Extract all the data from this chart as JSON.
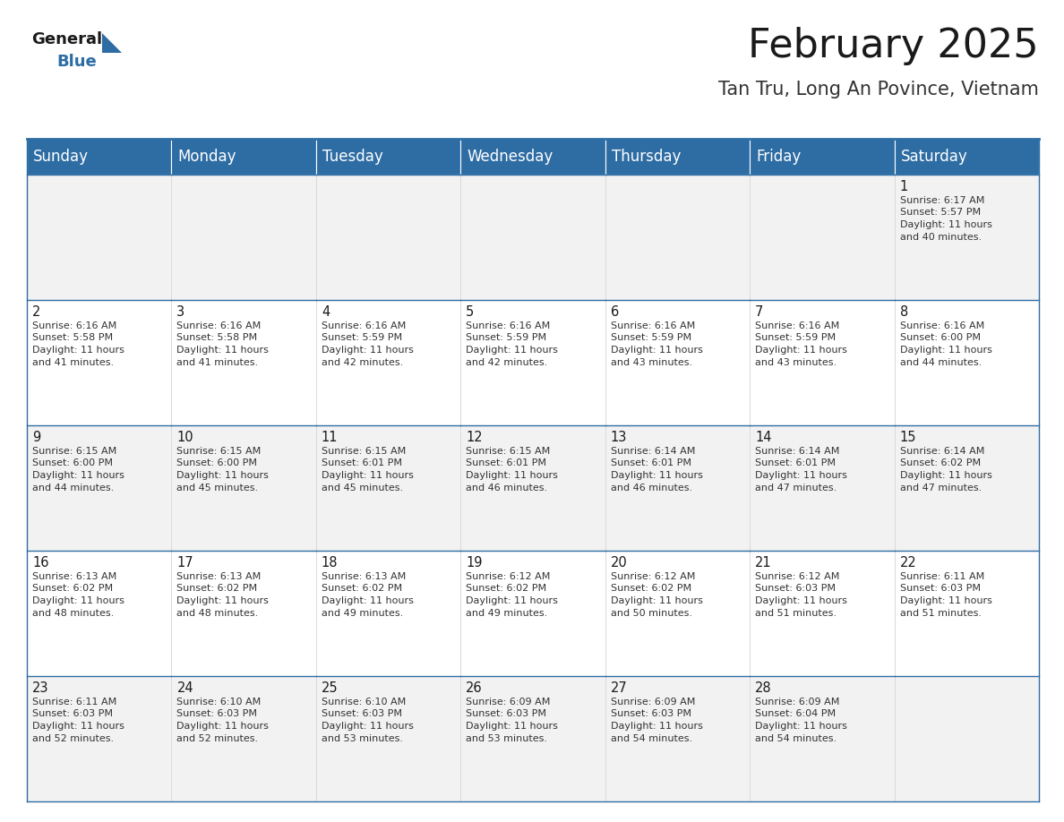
{
  "title": "February 2025",
  "subtitle": "Tan Tru, Long An Povince, Vietnam",
  "header_bg": "#2E6DA4",
  "header_text_color": "#FFFFFF",
  "cell_bg": "#F2F2F2",
  "cell_bg_empty": "#FFFFFF",
  "border_color": "#2E6DA4",
  "text_color": "#333333",
  "day_num_color": "#1a1a1a",
  "days_of_week": [
    "Sunday",
    "Monday",
    "Tuesday",
    "Wednesday",
    "Thursday",
    "Friday",
    "Saturday"
  ],
  "title_fontsize": 32,
  "subtitle_fontsize": 15,
  "header_fontsize": 12,
  "day_num_fontsize": 10.5,
  "cell_text_fontsize": 8.0,
  "logo_general_fontsize": 13,
  "logo_blue_fontsize": 13,
  "calendar": [
    [
      null,
      null,
      null,
      null,
      null,
      null,
      {
        "day": 1,
        "sunrise": "6:17 AM",
        "sunset": "5:57 PM",
        "daylight_line1": "Daylight: 11 hours",
        "daylight_line2": "and 40 minutes."
      }
    ],
    [
      {
        "day": 2,
        "sunrise": "6:16 AM",
        "sunset": "5:58 PM",
        "daylight_line1": "Daylight: 11 hours",
        "daylight_line2": "and 41 minutes."
      },
      {
        "day": 3,
        "sunrise": "6:16 AM",
        "sunset": "5:58 PM",
        "daylight_line1": "Daylight: 11 hours",
        "daylight_line2": "and 41 minutes."
      },
      {
        "day": 4,
        "sunrise": "6:16 AM",
        "sunset": "5:59 PM",
        "daylight_line1": "Daylight: 11 hours",
        "daylight_line2": "and 42 minutes."
      },
      {
        "day": 5,
        "sunrise": "6:16 AM",
        "sunset": "5:59 PM",
        "daylight_line1": "Daylight: 11 hours",
        "daylight_line2": "and 42 minutes."
      },
      {
        "day": 6,
        "sunrise": "6:16 AM",
        "sunset": "5:59 PM",
        "daylight_line1": "Daylight: 11 hours",
        "daylight_line2": "and 43 minutes."
      },
      {
        "day": 7,
        "sunrise": "6:16 AM",
        "sunset": "5:59 PM",
        "daylight_line1": "Daylight: 11 hours",
        "daylight_line2": "and 43 minutes."
      },
      {
        "day": 8,
        "sunrise": "6:16 AM",
        "sunset": "6:00 PM",
        "daylight_line1": "Daylight: 11 hours",
        "daylight_line2": "and 44 minutes."
      }
    ],
    [
      {
        "day": 9,
        "sunrise": "6:15 AM",
        "sunset": "6:00 PM",
        "daylight_line1": "Daylight: 11 hours",
        "daylight_line2": "and 44 minutes."
      },
      {
        "day": 10,
        "sunrise": "6:15 AM",
        "sunset": "6:00 PM",
        "daylight_line1": "Daylight: 11 hours",
        "daylight_line2": "and 45 minutes."
      },
      {
        "day": 11,
        "sunrise": "6:15 AM",
        "sunset": "6:01 PM",
        "daylight_line1": "Daylight: 11 hours",
        "daylight_line2": "and 45 minutes."
      },
      {
        "day": 12,
        "sunrise": "6:15 AM",
        "sunset": "6:01 PM",
        "daylight_line1": "Daylight: 11 hours",
        "daylight_line2": "and 46 minutes."
      },
      {
        "day": 13,
        "sunrise": "6:14 AM",
        "sunset": "6:01 PM",
        "daylight_line1": "Daylight: 11 hours",
        "daylight_line2": "and 46 minutes."
      },
      {
        "day": 14,
        "sunrise": "6:14 AM",
        "sunset": "6:01 PM",
        "daylight_line1": "Daylight: 11 hours",
        "daylight_line2": "and 47 minutes."
      },
      {
        "day": 15,
        "sunrise": "6:14 AM",
        "sunset": "6:02 PM",
        "daylight_line1": "Daylight: 11 hours",
        "daylight_line2": "and 47 minutes."
      }
    ],
    [
      {
        "day": 16,
        "sunrise": "6:13 AM",
        "sunset": "6:02 PM",
        "daylight_line1": "Daylight: 11 hours",
        "daylight_line2": "and 48 minutes."
      },
      {
        "day": 17,
        "sunrise": "6:13 AM",
        "sunset": "6:02 PM",
        "daylight_line1": "Daylight: 11 hours",
        "daylight_line2": "and 48 minutes."
      },
      {
        "day": 18,
        "sunrise": "6:13 AM",
        "sunset": "6:02 PM",
        "daylight_line1": "Daylight: 11 hours",
        "daylight_line2": "and 49 minutes."
      },
      {
        "day": 19,
        "sunrise": "6:12 AM",
        "sunset": "6:02 PM",
        "daylight_line1": "Daylight: 11 hours",
        "daylight_line2": "and 49 minutes."
      },
      {
        "day": 20,
        "sunrise": "6:12 AM",
        "sunset": "6:02 PM",
        "daylight_line1": "Daylight: 11 hours",
        "daylight_line2": "and 50 minutes."
      },
      {
        "day": 21,
        "sunrise": "6:12 AM",
        "sunset": "6:03 PM",
        "daylight_line1": "Daylight: 11 hours",
        "daylight_line2": "and 51 minutes."
      },
      {
        "day": 22,
        "sunrise": "6:11 AM",
        "sunset": "6:03 PM",
        "daylight_line1": "Daylight: 11 hours",
        "daylight_line2": "and 51 minutes."
      }
    ],
    [
      {
        "day": 23,
        "sunrise": "6:11 AM",
        "sunset": "6:03 PM",
        "daylight_line1": "Daylight: 11 hours",
        "daylight_line2": "and 52 minutes."
      },
      {
        "day": 24,
        "sunrise": "6:10 AM",
        "sunset": "6:03 PM",
        "daylight_line1": "Daylight: 11 hours",
        "daylight_line2": "and 52 minutes."
      },
      {
        "day": 25,
        "sunrise": "6:10 AM",
        "sunset": "6:03 PM",
        "daylight_line1": "Daylight: 11 hours",
        "daylight_line2": "and 53 minutes."
      },
      {
        "day": 26,
        "sunrise": "6:09 AM",
        "sunset": "6:03 PM",
        "daylight_line1": "Daylight: 11 hours",
        "daylight_line2": "and 53 minutes."
      },
      {
        "day": 27,
        "sunrise": "6:09 AM",
        "sunset": "6:03 PM",
        "daylight_line1": "Daylight: 11 hours",
        "daylight_line2": "and 54 minutes."
      },
      {
        "day": 28,
        "sunrise": "6:09 AM",
        "sunset": "6:04 PM",
        "daylight_line1": "Daylight: 11 hours",
        "daylight_line2": "and 54 minutes."
      },
      null
    ]
  ]
}
